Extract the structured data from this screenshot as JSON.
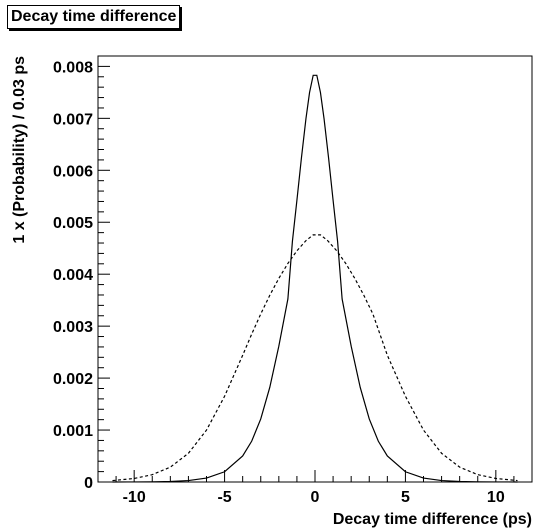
{
  "chart_data": {
    "type": "line",
    "title": "Decay time difference",
    "xlabel": "Decay time difference (ps)",
    "ylabel": "1 x (Probability) / 0.03 ps",
    "xlim": [
      -12,
      12
    ],
    "ylim": [
      0,
      0.0082
    ],
    "xticks": [
      -10,
      -5,
      0,
      5,
      10
    ],
    "xtick_labels": [
      "-10",
      "-5",
      "0",
      "5",
      "10"
    ],
    "yticks": [
      0,
      0.001,
      0.002,
      0.003,
      0.004,
      0.005,
      0.006,
      0.007,
      0.008
    ],
    "ytick_labels": [
      "0",
      "0.001",
      "0.002",
      "0.003",
      "0.004",
      "0.005",
      "0.006",
      "0.007",
      "0.008"
    ],
    "grid": false,
    "legend": "none",
    "series": [
      {
        "style": "solid",
        "color": "#000000",
        "x": [
          -11.2,
          -10,
          -9,
          -8,
          -7,
          -6,
          -5,
          -4,
          -3.5,
          -3,
          -2.5,
          -2,
          -1.5,
          -1.25,
          -1,
          -0.75,
          -0.5,
          -0.3,
          -0.1,
          0.1,
          0.3,
          0.5,
          0.75,
          1,
          1.25,
          1.5,
          2,
          2.5,
          3,
          3.5,
          4,
          5,
          6,
          7,
          8,
          9,
          10,
          11.2
        ],
        "y": [
          4e-07,
          1.4e-06,
          3.8e-06,
          1.04e-05,
          2.81e-05,
          7.52e-05,
          0.0001972,
          0.000501,
          0.0007867,
          0.0012135,
          0.0018219,
          0.0026162,
          0.0035225,
          0.0046306,
          0.0054244,
          0.0062405,
          0.0069949,
          0.0074995,
          0.0078286,
          0.0078286,
          0.0074995,
          0.0069949,
          0.0062405,
          0.0054244,
          0.0046306,
          0.0035225,
          0.0026162,
          0.0018219,
          0.0012135,
          0.0007867,
          0.000501,
          0.0001972,
          7.52e-05,
          2.81e-05,
          1.04e-05,
          3.8e-06,
          1.4e-06,
          4e-07
        ]
      },
      {
        "style": "dashed",
        "color": "#000000",
        "x": [
          -11.2,
          -10,
          -9,
          -8,
          -7,
          -6,
          -5,
          -4,
          -3.5,
          -3,
          -2.5,
          -2,
          -1.5,
          -1,
          -0.5,
          -0.1,
          0.3,
          0.7,
          1.2,
          1.7,
          2.2,
          2.7,
          3.2,
          4,
          5,
          6,
          7,
          8,
          9,
          10,
          11.2
        ],
        "y": [
          2.74e-05,
          6.79e-05,
          0.0001413,
          0.0002858,
          0.0005527,
          0.0009991,
          0.0016505,
          0.0024397,
          0.0028472,
          0.003235,
          0.0035943,
          0.0039196,
          0.0042066,
          0.0044511,
          0.004646,
          0.0047571,
          0.0047571,
          0.004646,
          0.0044511,
          0.0042066,
          0.0039196,
          0.0035943,
          0.003235,
          0.0024397,
          0.0016505,
          0.0009991,
          0.0005527,
          0.0002858,
          0.0001413,
          6.79e-05,
          2.74e-05
        ]
      }
    ]
  }
}
